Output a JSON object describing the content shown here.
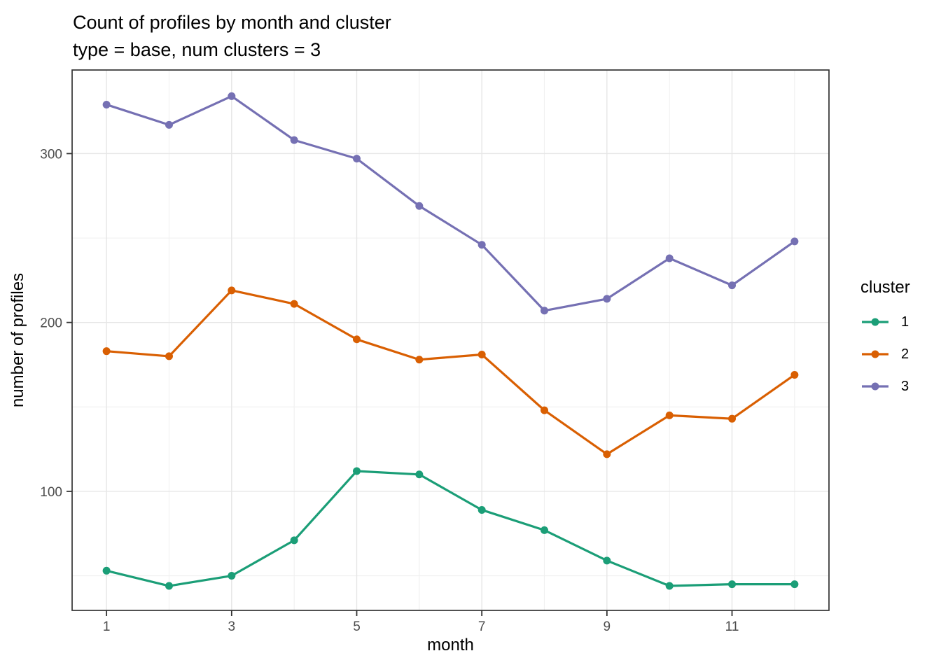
{
  "chart_data": {
    "type": "line",
    "title": "Count of profiles by month and cluster",
    "subtitle": "type = base, num clusters = 3",
    "xlabel": "month",
    "ylabel": "number of profiles",
    "x": [
      1,
      2,
      3,
      4,
      5,
      6,
      7,
      8,
      9,
      10,
      11,
      12
    ],
    "series": [
      {
        "name": "1",
        "color": "#1B9E77",
        "values": [
          53,
          44,
          50,
          71,
          112,
          110,
          89,
          77,
          59,
          44,
          45,
          45
        ]
      },
      {
        "name": "2",
        "color": "#D95F02",
        "values": [
          183,
          180,
          219,
          211,
          190,
          178,
          181,
          148,
          122,
          145,
          143,
          169
        ]
      },
      {
        "name": "3",
        "color": "#7570B3",
        "values": [
          329,
          317,
          334,
          308,
          297,
          269,
          246,
          207,
          214,
          238,
          222,
          248
        ]
      }
    ],
    "xlim": [
      0.45,
      12.55
    ],
    "ylim": [
      29.5,
      349.5
    ],
    "x_major_ticks": [
      1,
      3,
      5,
      7,
      9,
      11
    ],
    "x_minor_ticks": [
      2,
      4,
      6,
      8,
      10,
      12
    ],
    "y_major_ticks": [
      100,
      200,
      300
    ],
    "y_minor_ticks": [
      50,
      150,
      250,
      350
    ],
    "grid": true,
    "legend": {
      "title": "cluster",
      "position": "right"
    }
  },
  "theme": {
    "panel_border": "#333333",
    "grid_major": "#e6e6e6",
    "grid_minor": "#f0f0f0",
    "tick_color": "#333333",
    "tick_label_color": "#4d4d4d",
    "text_color": "#000000",
    "background": "#ffffff"
  }
}
